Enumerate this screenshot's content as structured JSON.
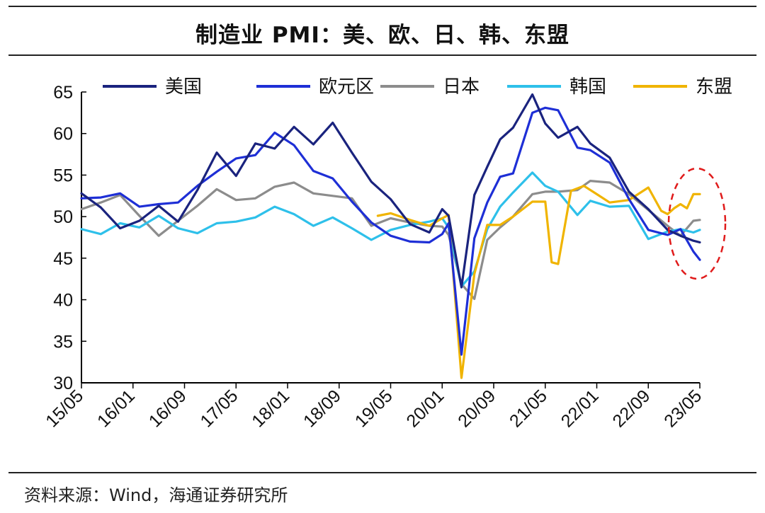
{
  "title": "制造业 PMI：美、欧、日、韩、东盟",
  "source": "资料来源：Wind，海通证券研究所",
  "chart_data": {
    "type": "line",
    "title": "制造业 PMI：美、欧、日、韩、东盟",
    "xlabel": "",
    "ylabel": "",
    "ylim": [
      30,
      65
    ],
    "yticks": [
      30,
      35,
      40,
      45,
      50,
      55,
      60,
      65
    ],
    "xlim": [
      "15/05",
      "23/05"
    ],
    "xticks": [
      "15/05",
      "16/01",
      "16/09",
      "17/05",
      "18/01",
      "18/09",
      "19/05",
      "20/01",
      "20/09",
      "21/05",
      "22/01",
      "22/09",
      "23/05"
    ],
    "grid": false,
    "legend": "top",
    "annotation": "red dashed ellipse highlighting recent readings (2023)",
    "series": [
      {
        "name": "美国",
        "color": "#1a237e",
        "x": [
          "15/05",
          "15/08",
          "15/11",
          "16/02",
          "16/05",
          "16/08",
          "16/11",
          "17/02",
          "17/05",
          "17/08",
          "17/11",
          "18/02",
          "18/05",
          "18/08",
          "18/11",
          "19/02",
          "19/05",
          "19/08",
          "19/11",
          "20/01",
          "20/02",
          "20/04",
          "20/06",
          "20/08",
          "20/10",
          "20/12",
          "21/03",
          "21/05",
          "21/07",
          "21/10",
          "21/12",
          "22/03",
          "22/06",
          "22/09",
          "22/12",
          "23/02",
          "23/04",
          "23/05"
        ],
        "values": [
          52.8,
          51.1,
          48.6,
          49.5,
          51.3,
          49.4,
          53.2,
          57.7,
          54.9,
          58.8,
          58.2,
          60.8,
          58.7,
          61.3,
          57.7,
          54.2,
          52.1,
          49.1,
          48.1,
          50.9,
          50.1,
          41.5,
          52.6,
          56.0,
          59.3,
          60.7,
          64.7,
          61.2,
          59.5,
          60.8,
          58.8,
          57.1,
          53.0,
          50.9,
          48.4,
          47.7,
          47.1,
          46.9
        ]
      },
      {
        "name": "欧元区",
        "color": "#1e2fd6",
        "x": [
          "15/05",
          "15/08",
          "15/11",
          "16/02",
          "16/05",
          "16/08",
          "16/11",
          "17/02",
          "17/05",
          "17/08",
          "17/11",
          "18/02",
          "18/05",
          "18/08",
          "18/11",
          "19/02",
          "19/05",
          "19/08",
          "19/11",
          "20/01",
          "20/02",
          "20/04",
          "20/06",
          "20/08",
          "20/10",
          "20/12",
          "21/03",
          "21/05",
          "21/07",
          "21/10",
          "21/12",
          "22/03",
          "22/06",
          "22/09",
          "22/12",
          "23/02",
          "23/04",
          "23/05"
        ],
        "values": [
          52.2,
          52.3,
          52.8,
          51.2,
          51.5,
          51.7,
          53.7,
          55.4,
          57.0,
          57.4,
          60.1,
          58.6,
          55.5,
          54.6,
          51.8,
          49.3,
          47.7,
          47.0,
          46.9,
          47.9,
          49.2,
          33.4,
          47.4,
          51.7,
          54.8,
          55.2,
          62.5,
          63.1,
          62.8,
          58.3,
          58.0,
          56.5,
          52.1,
          48.4,
          47.8,
          48.5,
          45.8,
          44.8
        ]
      },
      {
        "name": "日本",
        "color": "#8c8c8c",
        "x": [
          "15/05",
          "15/08",
          "15/11",
          "16/02",
          "16/05",
          "16/08",
          "16/11",
          "17/02",
          "17/05",
          "17/08",
          "17/11",
          "18/02",
          "18/05",
          "18/08",
          "18/11",
          "19/02",
          "19/05",
          "19/08",
          "19/11",
          "20/01",
          "20/02",
          "20/04",
          "20/06",
          "20/08",
          "20/10",
          "20/12",
          "21/03",
          "21/05",
          "21/07",
          "21/10",
          "21/12",
          "22/03",
          "22/06",
          "22/09",
          "22/12",
          "23/02",
          "23/04",
          "23/05"
        ],
        "values": [
          50.9,
          51.7,
          52.6,
          50.1,
          47.7,
          49.5,
          51.3,
          53.3,
          52.0,
          52.2,
          53.6,
          54.1,
          52.8,
          52.5,
          52.2,
          48.9,
          49.8,
          49.3,
          48.9,
          48.8,
          47.8,
          41.9,
          40.1,
          47.2,
          48.7,
          50.0,
          52.7,
          53.0,
          53.0,
          53.2,
          54.3,
          54.1,
          52.7,
          50.8,
          48.9,
          47.7,
          49.5,
          49.6
        ]
      },
      {
        "name": "韩国",
        "color": "#2ec0ea",
        "x": [
          "15/05",
          "15/08",
          "15/11",
          "16/02",
          "16/05",
          "16/08",
          "16/11",
          "17/02",
          "17/05",
          "17/08",
          "17/11",
          "18/02",
          "18/05",
          "18/08",
          "18/11",
          "19/02",
          "19/05",
          "19/08",
          "19/11",
          "20/01",
          "20/02",
          "20/04",
          "20/06",
          "20/08",
          "20/10",
          "20/12",
          "21/03",
          "21/05",
          "21/07",
          "21/10",
          "21/12",
          "22/03",
          "22/06",
          "22/09",
          "22/12",
          "23/02",
          "23/04",
          "23/05"
        ],
        "values": [
          48.5,
          47.9,
          49.2,
          48.7,
          50.1,
          48.6,
          48.0,
          49.2,
          49.4,
          49.9,
          51.2,
          50.3,
          48.9,
          49.9,
          48.6,
          47.2,
          48.4,
          49.0,
          49.4,
          49.8,
          48.7,
          41.6,
          43.4,
          48.5,
          51.2,
          52.9,
          55.3,
          53.7,
          53.0,
          50.2,
          51.9,
          51.2,
          51.3,
          47.3,
          48.2,
          48.5,
          48.1,
          48.4
        ]
      },
      {
        "name": "东盟",
        "color": "#f0b400",
        "x": [
          "19/03",
          "19/05",
          "19/08",
          "19/11",
          "20/01",
          "20/02",
          "20/04",
          "20/06",
          "20/08",
          "20/10",
          "20/12",
          "21/03",
          "21/05",
          "21/06",
          "21/07",
          "21/09",
          "21/11",
          "22/01",
          "22/03",
          "22/06",
          "22/09",
          "22/11",
          "22/12",
          "23/01",
          "23/02",
          "23/03",
          "23/04",
          "23/05"
        ],
        "values": [
          50.1,
          50.4,
          49.6,
          48.9,
          49.8,
          50.2,
          30.6,
          43.1,
          49.0,
          49.0,
          50.0,
          51.8,
          51.8,
          44.5,
          44.3,
          53.1,
          53.7,
          52.7,
          51.7,
          52.0,
          53.5,
          50.7,
          50.3,
          51.0,
          51.5,
          51.0,
          52.7,
          52.7
        ]
      }
    ]
  }
}
